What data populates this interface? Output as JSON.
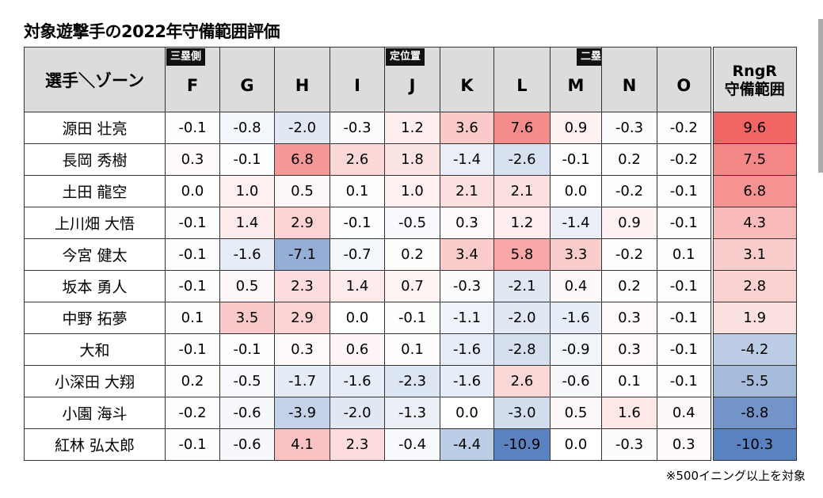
{
  "title": "対象遊撃手の2022年守備範囲評価",
  "note": "※500イニング以上を対象",
  "colors": {
    "positive": "#f05a5a",
    "negative": "#5a82c0",
    "header_bg": "#dcdcdc"
  },
  "chart_data": {
    "type": "table",
    "columns": {
      "name_header": "選手＼ゾーン",
      "zones": [
        "F",
        "G",
        "H",
        "I",
        "J",
        "K",
        "L",
        "M",
        "N",
        "O"
      ],
      "rng_header_line1": "RngR",
      "rng_header_line2": "守備範囲"
    },
    "zone_tags": {
      "F": "三塁側",
      "J": "定位置",
      "M": "二塁"
    },
    "rows": [
      {
        "name": "源田 壮亮",
        "values": [
          "-0.1",
          "-0.8",
          "-2.0",
          "-0.3",
          "1.2",
          "3.6",
          "7.6",
          "0.9",
          "-0.3",
          "-0.2"
        ],
        "rngr": "9.6"
      },
      {
        "name": "長岡 秀樹",
        "values": [
          "0.3",
          "-0.1",
          "6.8",
          "2.6",
          "1.8",
          "-1.4",
          "-2.6",
          "-0.1",
          "0.2",
          "-0.2"
        ],
        "rngr": "7.5"
      },
      {
        "name": "土田 龍空",
        "values": [
          "0.0",
          "1.0",
          "0.5",
          "0.1",
          "1.0",
          "2.1",
          "2.1",
          "0.0",
          "-0.2",
          "-0.1"
        ],
        "rngr": "6.8"
      },
      {
        "name": "上川畑 大悟",
        "values": [
          "-0.1",
          "1.4",
          "2.9",
          "-0.1",
          "-0.5",
          "0.3",
          "1.2",
          "-1.4",
          "0.9",
          "-0.1"
        ],
        "rngr": "4.3"
      },
      {
        "name": "今宮 健太",
        "values": [
          "-0.1",
          "-1.6",
          "-7.1",
          "-0.7",
          "0.2",
          "3.4",
          "5.8",
          "3.3",
          "-0.2",
          "0.1"
        ],
        "rngr": "3.1"
      },
      {
        "name": "坂本 勇人",
        "values": [
          "-0.1",
          "0.5",
          "2.3",
          "1.4",
          "0.7",
          "-0.3",
          "-2.1",
          "0.4",
          "0.2",
          "-0.1"
        ],
        "rngr": "2.8"
      },
      {
        "name": "中野 拓夢",
        "values": [
          "0.1",
          "3.5",
          "2.9",
          "0.0",
          "-0.1",
          "-1.1",
          "-2.0",
          "-1.6",
          "0.3",
          "-0.1"
        ],
        "rngr": "1.9"
      },
      {
        "name": "大和",
        "values": [
          "-0.1",
          "-0.1",
          "0.3",
          "0.6",
          "0.1",
          "-1.6",
          "-2.8",
          "-0.9",
          "0.3",
          "-0.1"
        ],
        "rngr": "-4.2"
      },
      {
        "name": "小深田 大翔",
        "values": [
          "0.2",
          "-0.5",
          "-1.7",
          "-1.6",
          "-2.3",
          "-1.6",
          "2.6",
          "-0.6",
          "0.1",
          "-0.1"
        ],
        "rngr": "-5.5"
      },
      {
        "name": "小園 海斗",
        "values": [
          "-0.2",
          "-0.6",
          "-3.9",
          "-2.0",
          "-1.3",
          "0.0",
          "-3.0",
          "0.5",
          "1.6",
          "0.4"
        ],
        "rngr": "-8.8"
      },
      {
        "name": "紅林 弘太郎",
        "values": [
          "-0.1",
          "-0.6",
          "4.1",
          "2.3",
          "-0.4",
          "-4.4",
          "-10.9",
          "0.0",
          "-0.3",
          "0.3"
        ],
        "rngr": "-10.3"
      }
    ]
  }
}
